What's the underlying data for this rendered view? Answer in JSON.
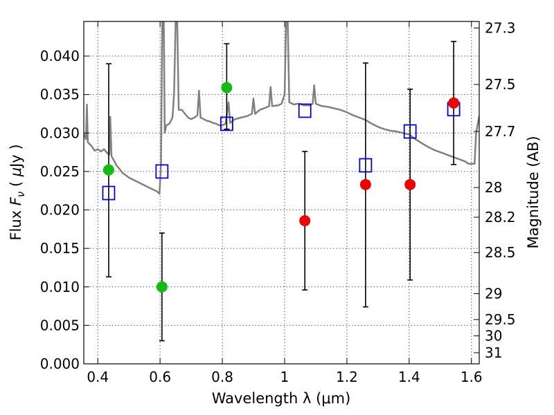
{
  "chart_data": {
    "type": "scatter",
    "title": "",
    "xlabel": "Wavelength  λ (μm)",
    "ylabel_parts": [
      "Flux  ",
      "F",
      "ν",
      "  ( ",
      "μ",
      "Jy )"
    ],
    "ylabel_right": "Magnitude (AB)",
    "xlim": [
      0.355,
      1.625
    ],
    "ylim": [
      0.0,
      0.0445
    ],
    "grid": true,
    "legend": "none",
    "x_ticks": [
      {
        "value": 0.4,
        "label": "0.4"
      },
      {
        "value": 0.6,
        "label": "0.6"
      },
      {
        "value": 0.8,
        "label": "0.8"
      },
      {
        "value": 1.0,
        "label": "1"
      },
      {
        "value": 1.2,
        "label": "1.2"
      },
      {
        "value": 1.4,
        "label": "1.4"
      },
      {
        "value": 1.6,
        "label": "1.6"
      }
    ],
    "y_ticks": [
      {
        "value": 0.0,
        "label": "0.000"
      },
      {
        "value": 0.005,
        "label": "0.005"
      },
      {
        "value": 0.01,
        "label": "0.010"
      },
      {
        "value": 0.015,
        "label": "0.015"
      },
      {
        "value": 0.02,
        "label": "0.020"
      },
      {
        "value": 0.025,
        "label": "0.025"
      },
      {
        "value": 0.03,
        "label": "0.030"
      },
      {
        "value": 0.035,
        "label": "0.035"
      },
      {
        "value": 0.04,
        "label": "0.040"
      }
    ],
    "right_ticks": [
      {
        "value": 27.3,
        "label": "27.3"
      },
      {
        "value": 27.5,
        "label": "27.5"
      },
      {
        "value": 27.7,
        "label": "27.7"
      },
      {
        "value": 28.0,
        "label": "28"
      },
      {
        "value": 28.2,
        "label": "28.2"
      },
      {
        "value": 28.5,
        "label": "28.5"
      },
      {
        "value": 29.0,
        "label": "29"
      },
      {
        "value": 29.5,
        "label": "29.5"
      },
      {
        "value": 30.0,
        "label": "30"
      },
      {
        "value": 31.0,
        "label": "31"
      }
    ],
    "colors": {
      "model": "#808080",
      "model_points": "#0000cc",
      "green_points": "#11bb11",
      "red_points": "#ee0000",
      "error_bars": "#000000",
      "grid": "#555555"
    },
    "model_points": [
      {
        "x": 0.435,
        "y": 0.0222
      },
      {
        "x": 0.606,
        "y": 0.025
      },
      {
        "x": 0.814,
        "y": 0.0312
      },
      {
        "x": 1.065,
        "y": 0.0329
      },
      {
        "x": 1.26,
        "y": 0.0258
      },
      {
        "x": 1.403,
        "y": 0.0302
      },
      {
        "x": 1.543,
        "y": 0.0331
      }
    ],
    "green_points": [
      {
        "x": 0.435,
        "y": 0.0252
      },
      {
        "x": 0.606,
        "y": 0.01
      },
      {
        "x": 0.814,
        "y": 0.0359
      }
    ],
    "red_points": [
      {
        "x": 1.065,
        "y": 0.0186
      },
      {
        "x": 1.26,
        "y": 0.0233
      },
      {
        "x": 1.403,
        "y": 0.0233
      },
      {
        "x": 1.543,
        "y": 0.0339
      }
    ],
    "error_bars": [
      {
        "x": 0.435,
        "low": 0.0113,
        "high": 0.039
      },
      {
        "x": 0.606,
        "low": 0.003,
        "high": 0.017
      },
      {
        "x": 0.814,
        "low": 0.0305,
        "high": 0.0416
      },
      {
        "x": 1.065,
        "low": 0.0096,
        "high": 0.0276
      },
      {
        "x": 1.26,
        "low": 0.0074,
        "high": 0.0391
      },
      {
        "x": 1.403,
        "low": 0.0109,
        "high": 0.0357
      },
      {
        "x": 1.543,
        "low": 0.0259,
        "high": 0.0419
      }
    ],
    "model_spectrum": [
      [
        0.355,
        0.0299
      ],
      [
        0.362,
        0.0292
      ],
      [
        0.365,
        0.0337
      ],
      [
        0.368,
        0.0288
      ],
      [
        0.38,
        0.0283
      ],
      [
        0.39,
        0.0277
      ],
      [
        0.4,
        0.0279
      ],
      [
        0.41,
        0.0276
      ],
      [
        0.42,
        0.0279
      ],
      [
        0.43,
        0.0274
      ],
      [
        0.437,
        0.0272
      ],
      [
        0.44,
        0.0321
      ],
      [
        0.444,
        0.027
      ],
      [
        0.46,
        0.0258
      ],
      [
        0.48,
        0.0248
      ],
      [
        0.5,
        0.0242
      ],
      [
        0.52,
        0.0238
      ],
      [
        0.54,
        0.0234
      ],
      [
        0.56,
        0.023
      ],
      [
        0.58,
        0.0226
      ],
      [
        0.59,
        0.0224
      ],
      [
        0.598,
        0.0221
      ],
      [
        0.603,
        0.026
      ],
      [
        0.607,
        0.0445
      ],
      [
        0.612,
        0.0445
      ],
      [
        0.615,
        0.03
      ],
      [
        0.62,
        0.031
      ],
      [
        0.63,
        0.0312
      ],
      [
        0.64,
        0.032
      ],
      [
        0.645,
        0.0352
      ],
      [
        0.65,
        0.0445
      ],
      [
        0.655,
        0.0445
      ],
      [
        0.66,
        0.033
      ],
      [
        0.67,
        0.033
      ],
      [
        0.68,
        0.0325
      ],
      [
        0.69,
        0.032
      ],
      [
        0.7,
        0.0318
      ],
      [
        0.71,
        0.032
      ],
      [
        0.72,
        0.0323
      ],
      [
        0.725,
        0.0355
      ],
      [
        0.73,
        0.032
      ],
      [
        0.74,
        0.0318
      ],
      [
        0.75,
        0.0316
      ],
      [
        0.76,
        0.0315
      ],
      [
        0.77,
        0.0313
      ],
      [
        0.78,
        0.0312
      ],
      [
        0.79,
        0.031
      ],
      [
        0.8,
        0.031
      ],
      [
        0.81,
        0.0312
      ],
      [
        0.82,
        0.034
      ],
      [
        0.825,
        0.0313
      ],
      [
        0.84,
        0.0318
      ],
      [
        0.86,
        0.032
      ],
      [
        0.88,
        0.0322
      ],
      [
        0.895,
        0.0325
      ],
      [
        0.9,
        0.0345
      ],
      [
        0.905,
        0.0325
      ],
      [
        0.92,
        0.033
      ],
      [
        0.94,
        0.0333
      ],
      [
        0.95,
        0.0335
      ],
      [
        0.955,
        0.036
      ],
      [
        0.96,
        0.0335
      ],
      [
        0.98,
        0.0336
      ],
      [
        0.99,
        0.0338
      ],
      [
        1.0,
        0.035
      ],
      [
        1.005,
        0.0445
      ],
      [
        1.01,
        0.0445
      ],
      [
        1.015,
        0.034
      ],
      [
        1.03,
        0.0337
      ],
      [
        1.04,
        0.0338
      ],
      [
        1.05,
        0.0338
      ],
      [
        1.06,
        0.0336
      ],
      [
        1.08,
        0.0336
      ],
      [
        1.09,
        0.0338
      ],
      [
        1.095,
        0.0362
      ],
      [
        1.1,
        0.0338
      ],
      [
        1.12,
        0.0335
      ],
      [
        1.14,
        0.0334
      ],
      [
        1.16,
        0.0332
      ],
      [
        1.18,
        0.033
      ],
      [
        1.2,
        0.0327
      ],
      [
        1.22,
        0.0323
      ],
      [
        1.24,
        0.032
      ],
      [
        1.26,
        0.0317
      ],
      [
        1.28,
        0.0312
      ],
      [
        1.3,
        0.0308
      ],
      [
        1.32,
        0.0305
      ],
      [
        1.34,
        0.0303
      ],
      [
        1.36,
        0.0302
      ],
      [
        1.38,
        0.03
      ],
      [
        1.4,
        0.0298
      ],
      [
        1.42,
        0.0292
      ],
      [
        1.44,
        0.0287
      ],
      [
        1.46,
        0.0282
      ],
      [
        1.48,
        0.0278
      ],
      [
        1.5,
        0.0275
      ],
      [
        1.52,
        0.0272
      ],
      [
        1.54,
        0.0269
      ],
      [
        1.56,
        0.0266
      ],
      [
        1.58,
        0.0263
      ],
      [
        1.59,
        0.026
      ],
      [
        1.6,
        0.026
      ],
      [
        1.61,
        0.026
      ],
      [
        1.615,
        0.03
      ],
      [
        1.625,
        0.0322
      ]
    ]
  }
}
